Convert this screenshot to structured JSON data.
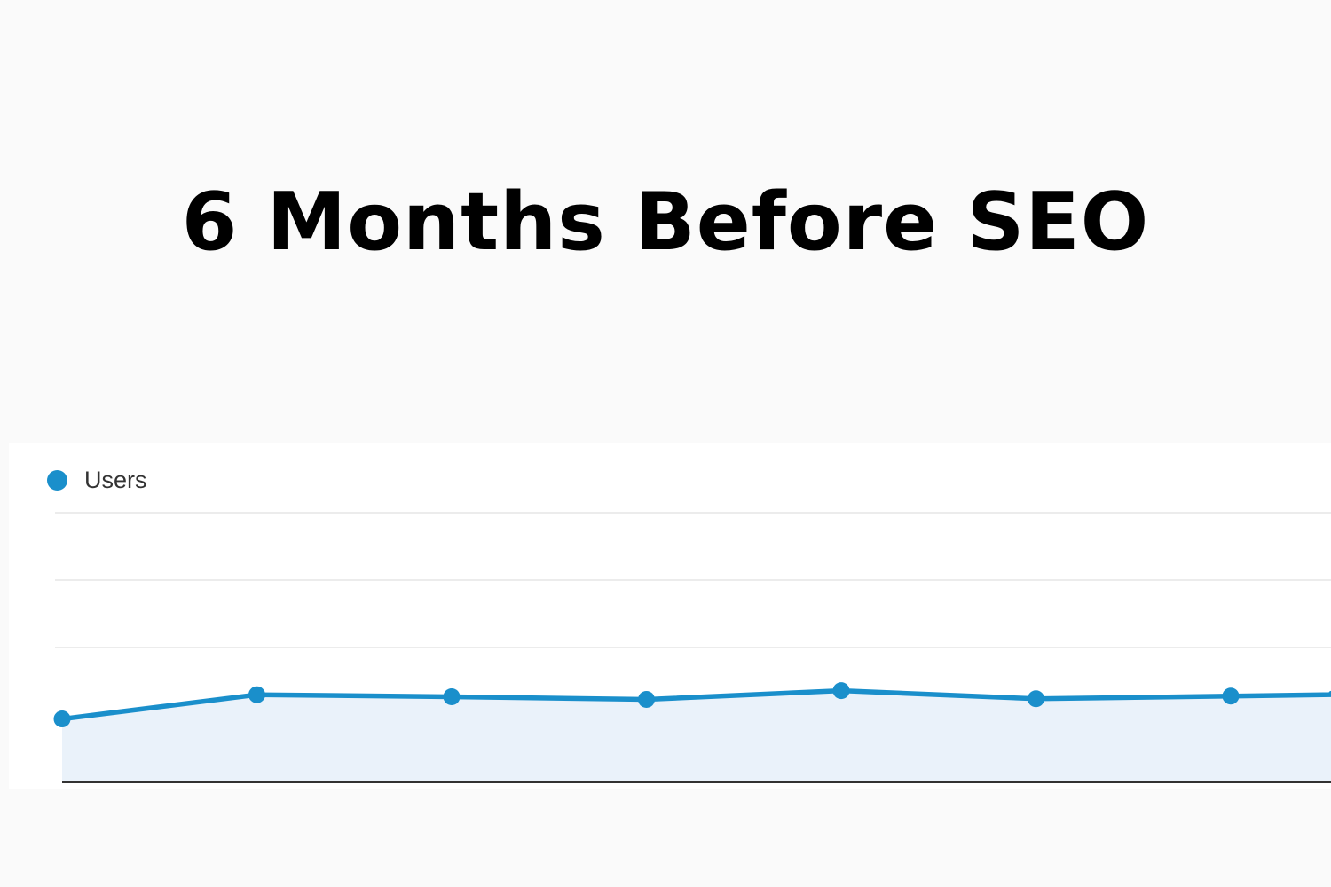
{
  "headline": "6 Months Before SEO",
  "legend": {
    "label": "Users",
    "color_icon": "filled-circle"
  },
  "colors": {
    "background": "#fafafa",
    "series_line": "#1a8fcb",
    "series_fill": "#eaf2fa",
    "legend_dot": "#1a8fcb",
    "gridline": "#e6e6e6",
    "axis": "#333333"
  },
  "chart_data": {
    "type": "area",
    "x": [
      1,
      2,
      3,
      4,
      5,
      6,
      7,
      8
    ],
    "series": [
      {
        "name": "Users",
        "values": [
          47,
          65,
          63.5,
          61.5,
          68,
          62,
          64,
          66
        ]
      }
    ],
    "ylim": [
      0,
      200
    ],
    "gridlines": [
      100,
      150,
      200
    ],
    "grid": true,
    "legend_position": "top-left",
    "title": "6 Months Before SEO",
    "xlabel": "",
    "ylabel": ""
  }
}
